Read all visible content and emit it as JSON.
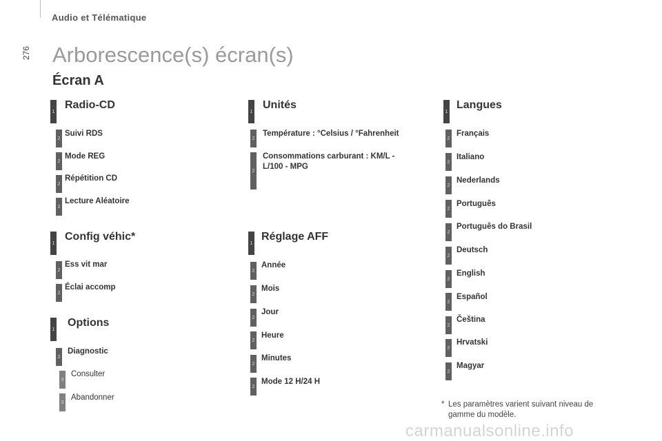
{
  "header": {
    "section": "Audio et Télématique",
    "page_number": "276"
  },
  "title": "Arborescence(s) écran(s)",
  "screen": "Écran A",
  "columns": {
    "radio": {
      "title": "Radio-CD",
      "items": [
        "Suivi RDS",
        "Mode REG",
        "Répétition CD",
        "Lecture Aléatoire"
      ]
    },
    "config": {
      "title": "Config véhic*",
      "items": [
        "Ess vit mar",
        "Éclai accomp"
      ]
    },
    "options": {
      "title": "Options",
      "items": [
        "Diagnostic"
      ],
      "subitems": [
        "Consulter",
        "Abandonner"
      ]
    },
    "unites": {
      "title": "Unités",
      "items": [
        "Température : °Celsius / °Fahrenheit",
        "Consommations carburant : KM/L - L/100 - MPG"
      ]
    },
    "reglage": {
      "title": "Réglage AFF",
      "items": [
        "Année",
        "Mois",
        "Jour",
        "Heure",
        "Minutes",
        "Mode 12 H/24 H"
      ]
    },
    "langues": {
      "title": "Langues",
      "items": [
        "Français",
        "Italiano",
        "Nederlands",
        "Português",
        "Português do Brasil",
        "Deutsch",
        "English",
        "Español",
        "Čeština",
        "Hrvatski",
        "Magyar"
      ]
    }
  },
  "levels": {
    "one": "1",
    "two": "2",
    "three": "3"
  },
  "footnote": {
    "star": "*",
    "text": "Les paramètres varient suivant niveau de gamme du modèle."
  },
  "watermark": "carmanualsonline.info"
}
